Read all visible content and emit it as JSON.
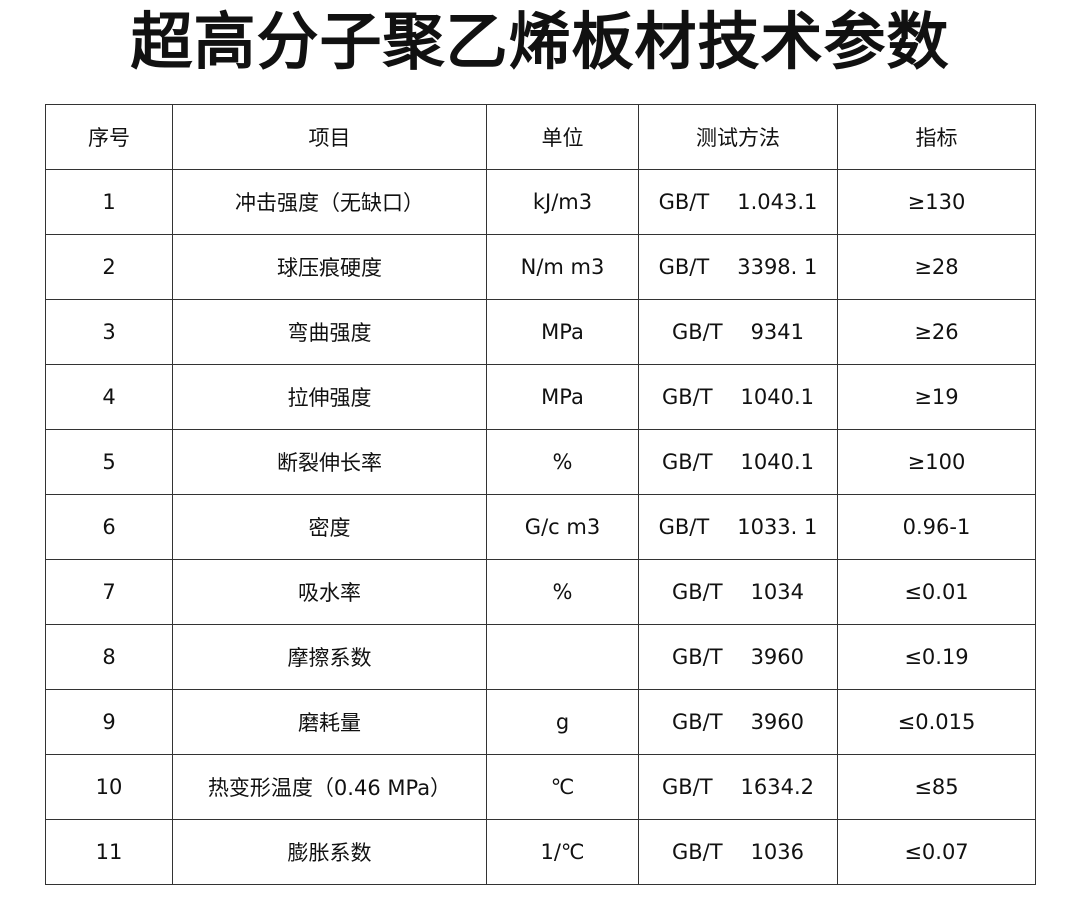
{
  "title": "超高分子聚乙烯板材技术参数",
  "headers": [
    "序号",
    "项目",
    "单位",
    "测试方法",
    "指标"
  ],
  "rows": [
    {
      "no": "1",
      "item": "冲击强度（无缺口）",
      "unit": "kJ/m3",
      "method": "GB/T",
      "code": "1.043.1",
      "value": "≥130"
    },
    {
      "no": "2",
      "item": "球压痕硬度",
      "unit": "N/m m3",
      "method": "GB/T",
      "code": "3398. 1",
      "value": "≥28"
    },
    {
      "no": "3",
      "item": "弯曲强度",
      "unit": "MPa",
      "method": "GB/T",
      "code": "9341",
      "value": "≥26"
    },
    {
      "no": "4",
      "item": "拉伸强度",
      "unit": "MPa",
      "method": "GB/T",
      "code": "1040.1",
      "value": "≥19"
    },
    {
      "no": "5",
      "item": "断裂伸长率",
      "unit": "%",
      "method": "GB/T",
      "code": "1040.1",
      "value": "≥100"
    },
    {
      "no": "6",
      "item": "密度",
      "unit": "G/c m3",
      "method": "GB/T",
      "code": "1033. 1",
      "value": "0.96-1"
    },
    {
      "no": "7",
      "item": "吸水率",
      "unit": "%",
      "method": "GB/T",
      "code": "1034",
      "value": "≤0.01"
    },
    {
      "no": "8",
      "item": "摩擦系数",
      "unit": "",
      "method": "GB/T",
      "code": "3960",
      "value": "≤0.19"
    },
    {
      "no": "9",
      "item": "磨耗量",
      "unit": "g",
      "method": "GB/T",
      "code": "3960",
      "value": "≤0.015"
    },
    {
      "no": "10",
      "item": "热变形温度（0.46 MPa）",
      "unit": "℃",
      "method": "GB/T",
      "code": "1634.2",
      "value": "≤85"
    },
    {
      "no": "11",
      "item": "膨胀系数",
      "unit": "1/℃",
      "method": "GB/T",
      "code": "1036",
      "value": "≤0.07"
    }
  ]
}
